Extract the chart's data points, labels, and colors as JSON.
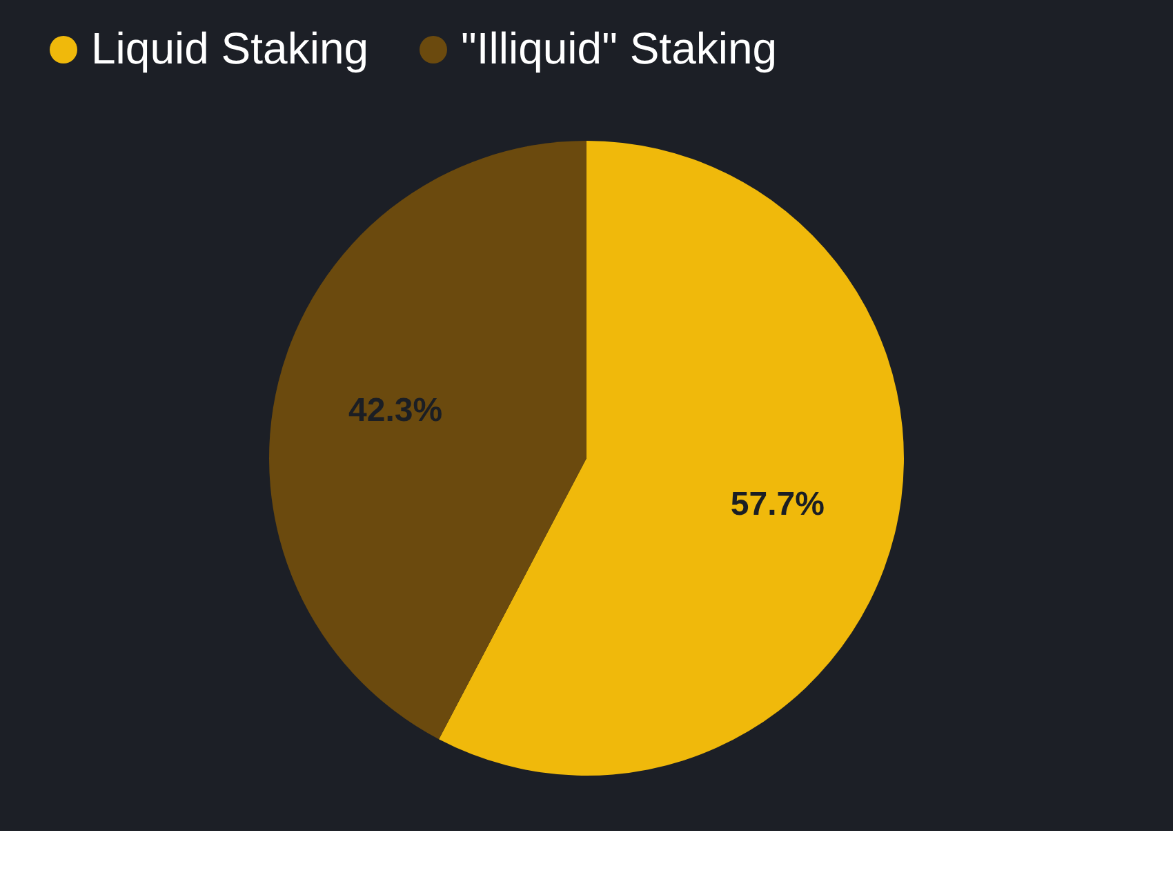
{
  "chart_data": {
    "type": "pie",
    "categories": [
      "Liquid Staking",
      "\"Illiquid\" Staking"
    ],
    "values": [
      57.7,
      42.3
    ],
    "colors": [
      "#f0b90b",
      "#6b4a0e"
    ],
    "value_labels": [
      "57.7%",
      "42.3%"
    ],
    "legend": "top"
  }
}
